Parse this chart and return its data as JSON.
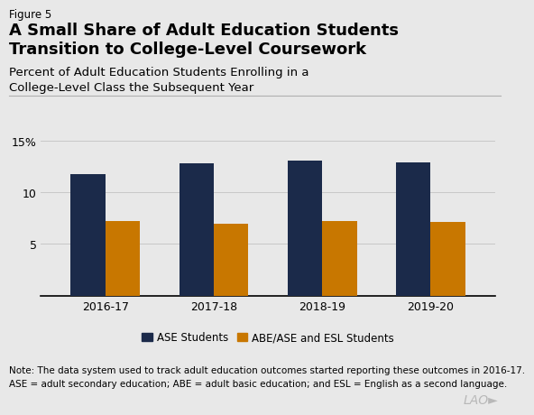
{
  "figure_label": "Figure 5",
  "title": "A Small Share of Adult Education Students\nTransition to College-Level Coursework",
  "subtitle": "Percent of Adult Education Students Enrolling in a\nCollege-Level Class the Subsequent Year",
  "categories": [
    "2016-17",
    "2017-18",
    "2018-19",
    "2019-20"
  ],
  "ase_values": [
    11.8,
    12.8,
    13.1,
    12.9
  ],
  "abe_values": [
    7.2,
    7.0,
    7.2,
    7.1
  ],
  "bar_color_ase": "#1b2a4a",
  "bar_color_abe": "#c87700",
  "background_color": "#e8e8e8",
  "plot_bg_color": "#e8e8e8",
  "ylim": [
    0,
    16
  ],
  "yticks": [
    5,
    10,
    15
  ],
  "ytick_labels": [
    "5",
    "10",
    "15%"
  ],
  "legend_ase": "ASE Students",
  "legend_abe": "ABE/ASE and ESL Students",
  "note1": "Note: The data system used to track adult education outcomes started reporting these outcomes in 2016-17.",
  "note2": "ASE = adult secondary education; ABE = adult basic education; and ESL = English as a second language.",
  "bar_width": 0.32,
  "lao_text": "LAO►",
  "separator_color": "#b0b0b0",
  "grid_color": "#c8c8c8",
  "note_fontsize": 7.5,
  "tick_fontsize": 9.0,
  "legend_fontsize": 8.5,
  "figure_label_fontsize": 8.5,
  "title_fontsize": 13.0,
  "subtitle_fontsize": 9.5
}
